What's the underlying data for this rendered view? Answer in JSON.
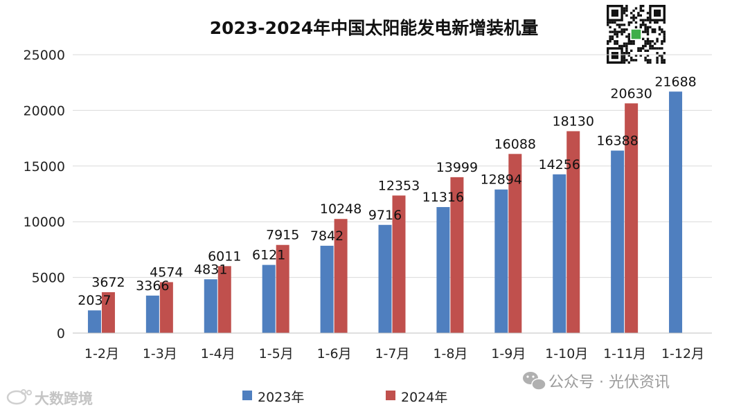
{
  "chart_data": {
    "type": "bar",
    "title": "2023-2024年中国太阳能发电新增装机量",
    "xlabel": "",
    "ylabel": "",
    "ylim": [
      0,
      25000
    ],
    "yticks": [
      0,
      5000,
      10000,
      15000,
      20000,
      25000
    ],
    "grid": true,
    "legend_position": "bottom",
    "categories": [
      "1-2月",
      "1-3月",
      "1-4月",
      "1-5月",
      "1-6月",
      "1-7月",
      "1-8月",
      "1-9月",
      "1-10月",
      "1-11月",
      "1-12月"
    ],
    "series": [
      {
        "name": "2023年",
        "color": "#4f7fbf",
        "values": [
          2037,
          3366,
          4831,
          6121,
          7842,
          9716,
          11316,
          12894,
          14256,
          16388,
          21688
        ]
      },
      {
        "name": "2024年",
        "color": "#c0504d",
        "values": [
          3672,
          4574,
          6011,
          7915,
          10248,
          12353,
          13999,
          16088,
          18130,
          20630,
          null
        ]
      }
    ]
  },
  "watermarks": {
    "bottom_left": "大数跨境",
    "bottom_right": "公众号 · 光伏资讯",
    "qr_code": "qr-code"
  }
}
